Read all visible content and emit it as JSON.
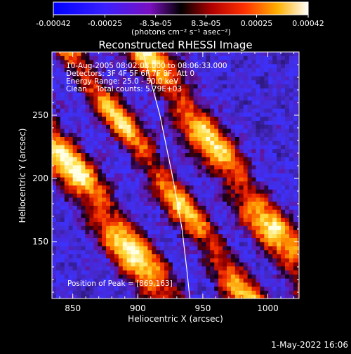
{
  "chart_data": {
    "type": "heatmap",
    "title": "Reconstructed RHESSI Image",
    "xlabel": "Heliocentric X (arcsec)",
    "ylabel": "Heliocentric Y (arcsec)",
    "xlim": [
      834,
      1024
    ],
    "ylim": [
      105,
      300
    ],
    "xticks": [
      850,
      900,
      950,
      1000
    ],
    "yticks": [
      150,
      200,
      250
    ],
    "colorbar": {
      "range": [
        -0.00042,
        0.00042
      ],
      "tick_values": [
        -0.00042,
        -0.00025,
        -8.3e-05,
        8.3e-05,
        0.00025,
        0.00042
      ],
      "tick_labels": [
        "-0.00042",
        "-0.00025",
        "-8.3e-05",
        "8.3e-05",
        "0.00025",
        "0.00042"
      ],
      "units": "(photons cm⁻² s⁻¹ asec⁻²)"
    },
    "annotations": [
      "10-Aug-2005 08:02:08.000 to 08:06:33.000",
      "Detectors: 3F 4F 5F 6F 7F 8F, Att 0",
      "Energy Range: 25.0 - 50.0 keV",
      "Clean    Total counts: 5.79E+03",
      "Position of Peak = [869,163]"
    ],
    "peak": {
      "x": 869,
      "y": 163
    },
    "bands": [
      {
        "name": "left",
        "offset": -37,
        "width": 15,
        "strength": 1.0
      },
      {
        "name": "middle",
        "offset": 15,
        "width": 12,
        "strength": 0.85
      },
      {
        "name": "right",
        "offset": 62,
        "width": 15,
        "strength": 0.9
      }
    ],
    "limb_curve": {
      "x": [
        904,
        917,
        927,
        934,
        938,
        940
      ],
      "y": [
        300,
        250,
        200,
        160,
        125,
        105
      ]
    },
    "footer": "1-May-2022 16:06"
  }
}
